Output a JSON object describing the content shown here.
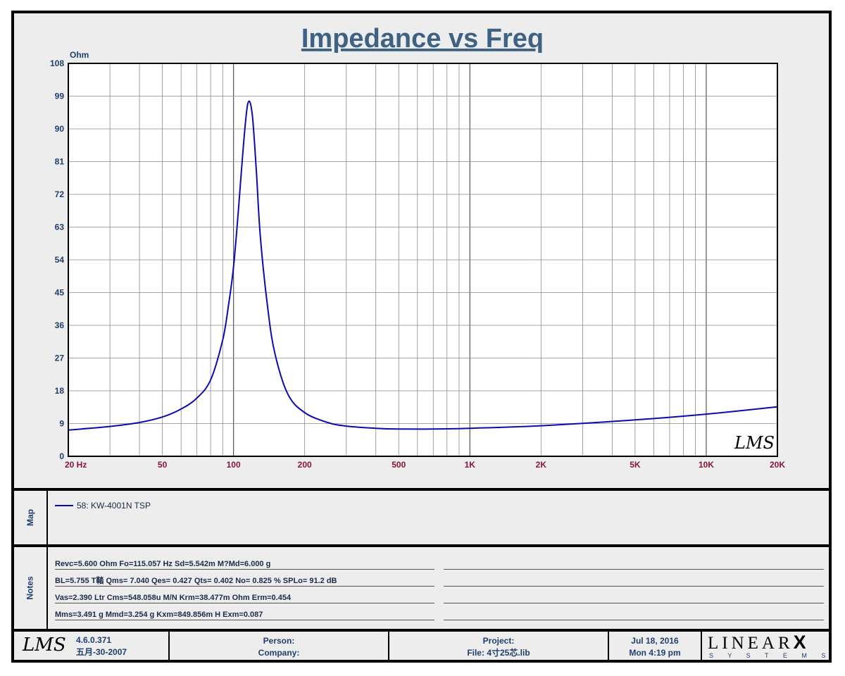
{
  "chart_data": {
    "type": "line",
    "title": "Impedance vs Freq",
    "ylabel": "Ohm",
    "xscale": "log",
    "xlim": [
      20,
      20000
    ],
    "ylim": [
      0,
      108
    ],
    "y_ticks": [
      "0",
      "9",
      "18",
      "27",
      "36",
      "45",
      "54",
      "63",
      "72",
      "81",
      "90",
      "99",
      "108"
    ],
    "x_ticks": [
      {
        "value": 20,
        "label": "20  Hz"
      },
      {
        "value": 50,
        "label": "50"
      },
      {
        "value": 100,
        "label": "100"
      },
      {
        "value": 200,
        "label": "200"
      },
      {
        "value": 500,
        "label": "500"
      },
      {
        "value": 1000,
        "label": "1K"
      },
      {
        "value": 2000,
        "label": "2K"
      },
      {
        "value": 5000,
        "label": "5K"
      },
      {
        "value": 10000,
        "label": "10K"
      },
      {
        "value": 20000,
        "label": "20K"
      }
    ],
    "grid": true,
    "watermark": "LMS",
    "series": [
      {
        "name": "58: KW-4001N TSP",
        "color": "#0b0bb0",
        "x": [
          20,
          30,
          40,
          50,
          60,
          70,
          80,
          90,
          95,
          100,
          105,
          110,
          115,
          120,
          125,
          130,
          140,
          150,
          170,
          200,
          250,
          300,
          400,
          500,
          700,
          1000,
          2000,
          5000,
          10000,
          20000
        ],
        "y": [
          7.2,
          8.2,
          9.3,
          10.8,
          13.0,
          16.0,
          21.0,
          32.0,
          41.0,
          52.0,
          68.0,
          85.0,
          97.0,
          94.0,
          78.0,
          60.0,
          40.0,
          28.0,
          17.0,
          12.0,
          9.3,
          8.3,
          7.7,
          7.5,
          7.5,
          7.7,
          8.4,
          10.0,
          11.6,
          13.6
        ]
      }
    ]
  },
  "map": {
    "label": "Map",
    "entries": [
      {
        "text": "58: KW-4001N TSP",
        "color": "#0b0bb0"
      }
    ]
  },
  "notes": {
    "label": "Notes",
    "lines": [
      "Revc=5.600 Ohm  Fo=115.057 Hz  Sd=5.542m M?Md=6.000 g",
      "BL=5.755 T鞜  Qms= 7.040  Qes= 0.427  Qts= 0.402  No= 0.825 %  SPLo= 91.2 dB",
      "Vas=2.390 Ltr  Cms=548.058u M/N  Krm=38.477m Ohm  Erm=0.454",
      "Mms=3.491 g  Mmd=3.254 g  Kxm=849.856m H  Exm=0.087"
    ]
  },
  "footer": {
    "logo": "LMS",
    "version": "4.6.0.371",
    "version_date": "五月-30-2007",
    "person_label": "Person:",
    "company_label": "Company:",
    "project_label": "Project:",
    "file_label": "File: 4寸25芯.lib",
    "date": "Jul 18, 2016",
    "time": "Mon  4:19 pm",
    "brand": "LINEAR",
    "brand_x": "X",
    "brand_sub": "S Y S T E M S"
  }
}
